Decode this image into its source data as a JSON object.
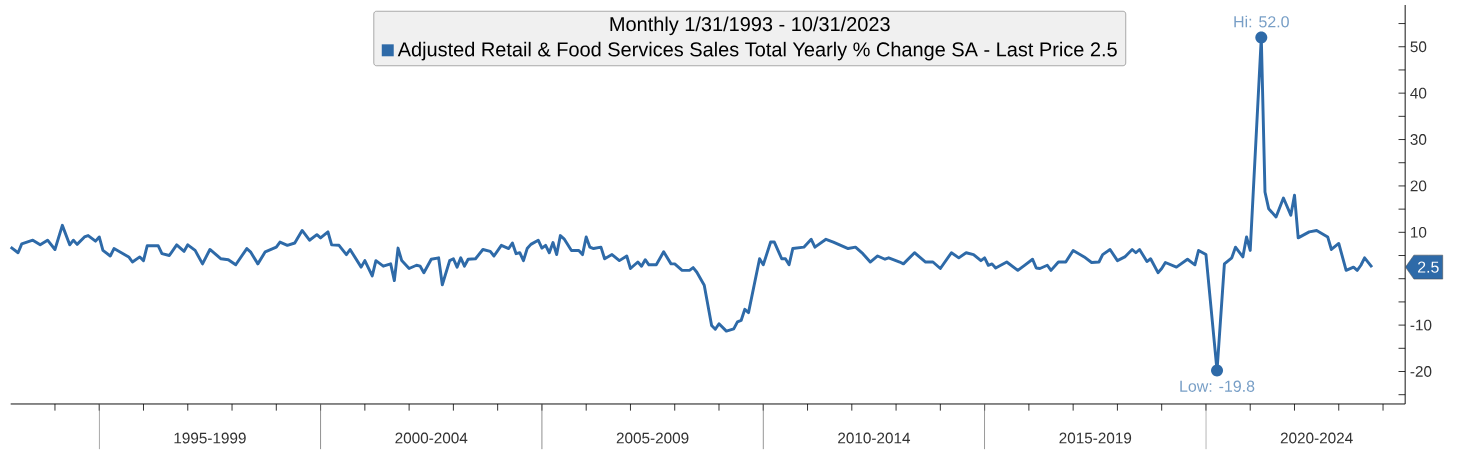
{
  "chart_data": {
    "type": "line",
    "legend_title": "Monthly 1/31/1993 - 10/31/2023",
    "legend": "top",
    "series": [
      {
        "name": "Adjusted Retail & Food Services Sales Total Yearly % Change SA - Last Price 2.5",
        "color": "#2e6aa8",
        "x": [
          "1993-01",
          "1993-03",
          "1993-04",
          "1993-07",
          "1993-09",
          "1993-11",
          "1994-01",
          "1994-03",
          "1994-05",
          "1994-06",
          "1994-07",
          "1994-09",
          "1994-10",
          "1994-12",
          "1995-01",
          "1995-02",
          "1995-04",
          "1995-05",
          "1995-09",
          "1995-10",
          "1995-12",
          "1996-01",
          "1996-02",
          "1996-05",
          "1996-06",
          "1996-08",
          "1996-10",
          "1996-12",
          "1997-01",
          "1997-03",
          "1997-05",
          "1997-07",
          "1997-10",
          "1997-12",
          "1998-02",
          "1998-05",
          "1998-06",
          "1998-08",
          "1998-10",
          "1999-01",
          "1999-02",
          "1999-04",
          "1999-06",
          "1999-08",
          "1999-10",
          "1999-12",
          "2000-01",
          "2000-03",
          "2000-04",
          "2000-06",
          "2000-08",
          "2000-09",
          "2000-12",
          "2001-01",
          "2001-03",
          "2001-04",
          "2001-06",
          "2001-08",
          "2001-09",
          "2001-10",
          "2001-11",
          "2002-01",
          "2002-03",
          "2002-04",
          "2002-05",
          "2002-07",
          "2002-09",
          "2002-10",
          "2002-12",
          "2003-01",
          "2003-02",
          "2003-03",
          "2003-04",
          "2003-05",
          "2003-07",
          "2003-09",
          "2003-11",
          "2003-12",
          "2004-02",
          "2004-04",
          "2004-05",
          "2004-06",
          "2004-07",
          "2004-08",
          "2004-09",
          "2004-10",
          "2004-12",
          "2005-01",
          "2005-02",
          "2005-03",
          "2005-04",
          "2005-05",
          "2005-06",
          "2005-07",
          "2005-09",
          "2005-11",
          "2005-12",
          "2006-01",
          "2006-02",
          "2006-03",
          "2006-05",
          "2006-06",
          "2006-08",
          "2006-10",
          "2006-12",
          "2007-01",
          "2007-03",
          "2007-04",
          "2007-05",
          "2007-06",
          "2007-08",
          "2007-10",
          "2007-12",
          "2008-01",
          "2008-03",
          "2008-05",
          "2008-06",
          "2008-07",
          "2008-09",
          "2008-11",
          "2008-12",
          "2009-01",
          "2009-03",
          "2009-05",
          "2009-06",
          "2009-07",
          "2009-08",
          "2009-09",
          "2009-12",
          "2010-01",
          "2010-03",
          "2010-04",
          "2010-06",
          "2010-07",
          "2010-08",
          "2010-09",
          "2010-12",
          "2011-02",
          "2011-03",
          "2011-06",
          "2011-08",
          "2011-12",
          "2012-02",
          "2012-04",
          "2012-06",
          "2012-08",
          "2012-10",
          "2012-11",
          "2013-02",
          "2013-03",
          "2013-06",
          "2013-09",
          "2013-11",
          "2014-01",
          "2014-04",
          "2014-06",
          "2014-08",
          "2014-10",
          "2014-12",
          "2015-01",
          "2015-02",
          "2015-03",
          "2015-04",
          "2015-07",
          "2015-10",
          "2015-12",
          "2016-02",
          "2016-03",
          "2016-04",
          "2016-06",
          "2016-07",
          "2016-09",
          "2016-11",
          "2017-01",
          "2017-04",
          "2017-06",
          "2017-08",
          "2017-09",
          "2017-11",
          "2018-01",
          "2018-03",
          "2018-05",
          "2018-06",
          "2018-07",
          "2018-09",
          "2018-10",
          "2018-12",
          "2019-01",
          "2019-02",
          "2019-05",
          "2019-08",
          "2019-10",
          "2019-11",
          "2020-01",
          "2020-04",
          "2020-06",
          "2020-08",
          "2020-09",
          "2020-11",
          "2020-12",
          "2021-01",
          "2021-04",
          "2021-05",
          "2021-06",
          "2021-08",
          "2021-10",
          "2021-12",
          "2022-01",
          "2022-02",
          "2022-05",
          "2022-07",
          "2022-10",
          "2022-11",
          "2023-01",
          "2023-03",
          "2023-05",
          "2023-06",
          "2023-07",
          "2023-08",
          "2023-10"
        ],
        "values": [
          6.8,
          5.6,
          7.5,
          8.3,
          7.3,
          8.3,
          6.3,
          11.5,
          7.3,
          8.3,
          7.4,
          9.0,
          9.3,
          8.1,
          9.0,
          6.1,
          4.9,
          6.5,
          4.7,
          3.6,
          4.7,
          3.9,
          7.1,
          7.1,
          5.4,
          5.0,
          7.3,
          5.9,
          7.3,
          6.1,
          3.2,
          6.3,
          4.3,
          4.1,
          3.0,
          6.5,
          5.8,
          3.2,
          5.8,
          6.8,
          7.9,
          7.2,
          7.7,
          10.4,
          8.3,
          9.5,
          8.8,
          10.1,
          7.3,
          7.2,
          5.2,
          6.3,
          2.5,
          3.9,
          0.6,
          3.9,
          2.7,
          3.2,
          -0.4,
          6.6,
          3.9,
          2.2,
          2.9,
          2.7,
          1.3,
          4.2,
          4.5,
          -1.3,
          3.9,
          4.3,
          2.5,
          4.5,
          2.7,
          4.2,
          4.3,
          6.3,
          5.9,
          4.9,
          7.2,
          6.5,
          7.7,
          5.4,
          5.6,
          3.9,
          6.5,
          7.4,
          8.3,
          6.6,
          7.2,
          5.6,
          7.8,
          5.2,
          9.3,
          8.6,
          6.1,
          6.1,
          5.2,
          9.0,
          6.8,
          6.5,
          6.8,
          4.3,
          5.2,
          3.9,
          4.9,
          2.2,
          3.6,
          2.7,
          4.1,
          3.0,
          3.0,
          5.8,
          3.2,
          3.2,
          1.8,
          1.8,
          2.4,
          1.4,
          -1.4,
          -10.1,
          -10.9,
          -9.7,
          -11.3,
          -10.8,
          -9.3,
          -9.0,
          -6.6,
          -7.3,
          4.3,
          3.0,
          7.9,
          7.9,
          4.3,
          4.3,
          3.0,
          6.5,
          6.8,
          8.5,
          6.8,
          8.5,
          7.9,
          6.5,
          6.8,
          5.4,
          3.6,
          4.9,
          4.2,
          4.5,
          3.6,
          3.2,
          5.6,
          3.6,
          3.6,
          2.2,
          5.6,
          4.5,
          5.6,
          5.2,
          3.9,
          4.5,
          2.9,
          3.2,
          2.3,
          3.6,
          1.8,
          3.0,
          4.2,
          2.3,
          2.2,
          2.9,
          1.8,
          3.6,
          3.6,
          6.1,
          4.7,
          3.5,
          3.6,
          5.2,
          6.3,
          3.9,
          4.7,
          6.3,
          5.6,
          6.3,
          3.7,
          4.3,
          1.3,
          2.2,
          3.5,
          2.5,
          4.2,
          3.0,
          6.1,
          5.2,
          -19.8,
          3.2,
          4.5,
          6.8,
          4.7,
          9.0,
          6.1,
          52.0,
          18.7,
          15.1,
          13.3,
          17.4,
          13.7,
          18.0,
          8.8,
          10.1,
          10.4,
          9.0,
          6.3,
          7.6,
          1.8,
          2.5,
          1.8,
          2.9,
          4.5,
          2.5
        ]
      }
    ],
    "xlim": [
      "1993-01",
      "2024-07"
    ],
    "xticks": [
      {
        "value": "1994-01",
        "label": null
      },
      {
        "value": "1995-01",
        "label": null
      },
      {
        "value": "1996-01",
        "label": null
      },
      {
        "value": "1997-01",
        "label": null
      },
      {
        "value": "1998-01",
        "label": null
      },
      {
        "value": "1999-01",
        "label": null
      },
      {
        "value": "2000-01",
        "label": null
      },
      {
        "value": "2001-01",
        "label": null
      },
      {
        "value": "2002-01",
        "label": null
      },
      {
        "value": "2003-01",
        "label": null
      },
      {
        "value": "2004-01",
        "label": null
      },
      {
        "value": "2005-01",
        "label": null
      },
      {
        "value": "2006-01",
        "label": null
      },
      {
        "value": "2007-01",
        "label": null
      },
      {
        "value": "2008-01",
        "label": null
      },
      {
        "value": "2009-01",
        "label": null
      },
      {
        "value": "2010-01",
        "label": null
      },
      {
        "value": "2011-01",
        "label": null
      },
      {
        "value": "2012-01",
        "label": null
      },
      {
        "value": "2013-01",
        "label": null
      },
      {
        "value": "2014-01",
        "label": null
      },
      {
        "value": "2015-01",
        "label": null
      },
      {
        "value": "2016-01",
        "label": null
      },
      {
        "value": "2017-01",
        "label": null
      },
      {
        "value": "2018-01",
        "label": null
      },
      {
        "value": "2019-01",
        "label": null
      },
      {
        "value": "2020-01",
        "label": null
      },
      {
        "value": "2021-01",
        "label": null
      },
      {
        "value": "2022-01",
        "label": null
      },
      {
        "value": "2023-01",
        "label": null
      },
      {
        "value": "2024-01",
        "label": null
      },
      {
        "value": "1997-07",
        "label": "1995-1999"
      },
      {
        "value": "2002-07",
        "label": "2000-2004"
      },
      {
        "value": "2007-07",
        "label": "2005-2009"
      },
      {
        "value": "2012-07",
        "label": "2010-2014"
      },
      {
        "value": "2017-07",
        "label": "2015-2019"
      },
      {
        "value": "2022-07",
        "label": "2020-2024"
      }
    ],
    "ylim": [
      -27,
      59
    ],
    "yticks": [
      {
        "value": -25,
        "label": null
      },
      -20,
      {
        "value": -15,
        "label": null
      },
      -10,
      {
        "value": -5,
        "label": null
      },
      {
        "value": 0,
        "label": null
      },
      {
        "value": 5,
        "label": null
      },
      10,
      {
        "value": 15,
        "label": null
      },
      20,
      {
        "value": 25,
        "label": null
      },
      30,
      {
        "value": 35,
        "label": null
      },
      40,
      {
        "value": 45,
        "label": null
      },
      50,
      {
        "value": 55,
        "label": null
      }
    ],
    "annotations": [
      {
        "text": "Hi: 52.0",
        "x": "2021-04",
        "y": 52.0
      },
      {
        "text": "Low: -19.8",
        "x": "2020-04",
        "y": -19.8
      },
      {
        "text": "2.5",
        "x": "2023-10",
        "y": 2.5
      }
    ]
  }
}
